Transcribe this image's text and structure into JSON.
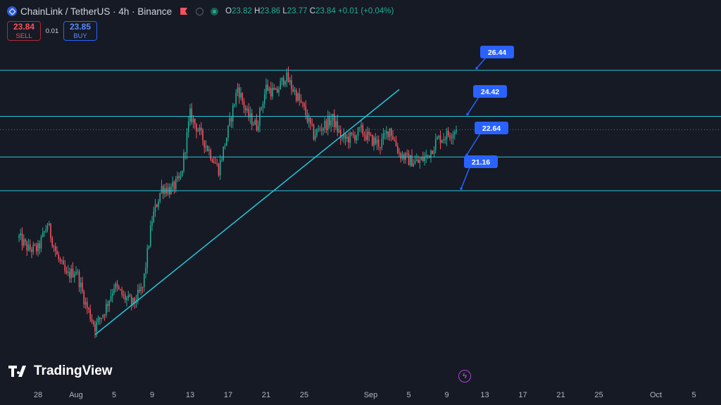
{
  "header": {
    "symbol_title": "ChainLink / TetherUS · 4h · Binance",
    "ohlc": {
      "o_label": "O",
      "o": "23.82",
      "h_label": "H",
      "h": "23.86",
      "l_label": "L",
      "l": "23.77",
      "c_label": "C",
      "c": "23.84",
      "change": "+0.01 (+0.04%)"
    }
  },
  "trade": {
    "sell_price": "23.84",
    "sell_label": "SELL",
    "spread": "0.01",
    "buy_price": "23.85",
    "buy_label": "BUY"
  },
  "branding": {
    "logo_text": "TradingView"
  },
  "colors": {
    "background": "#161a25",
    "up": "#22ab94",
    "down": "#f7525f",
    "lines": "#26c6da",
    "callout": "#2962ff"
  },
  "chart_data": {
    "type": "candlestick",
    "interval": "4h",
    "x_tick_labels": [
      "28",
      "Aug",
      "5",
      "9",
      "13",
      "17",
      "21",
      "25",
      "Sep",
      "5",
      "9",
      "13",
      "17",
      "21",
      "25",
      "Oct",
      "5"
    ],
    "x_tick_dates": [
      "2024-07-28",
      "2024-08-01",
      "2024-08-05",
      "2024-08-09",
      "2024-08-13",
      "2024-08-17",
      "2024-08-21",
      "2024-08-25",
      "2024-09-01",
      "2024-09-05",
      "2024-09-09",
      "2024-09-13",
      "2024-09-17",
      "2024-09-21",
      "2024-09-25",
      "2024-10-01",
      "2024-10-05"
    ],
    "y_range": [
      15.0,
      27.5
    ],
    "grid": false,
    "last_price": 23.84,
    "horizontal_levels": [
      {
        "label": "26.44",
        "value": 26.44
      },
      {
        "label": "24.42",
        "value": 24.42
      },
      {
        "label": "22.64",
        "value": 22.64
      },
      {
        "label": "21.16",
        "value": 21.16
      }
    ],
    "trendline": {
      "from": {
        "date": "2024-08-03",
        "value": 14.85
      },
      "to": {
        "date": "2024-09-04",
        "value": 25.6
      }
    },
    "close_path": [
      [
        "2024-07-26",
        19.1
      ],
      [
        "2024-07-27",
        18.6
      ],
      [
        "2024-07-28",
        18.6
      ],
      [
        "2024-07-29",
        19.7
      ],
      [
        "2024-07-30",
        18.3
      ],
      [
        "2024-07-31",
        17.4
      ],
      [
        "2024-08-01",
        17.7
      ],
      [
        "2024-08-02",
        16.2
      ],
      [
        "2024-08-03",
        15.2
      ],
      [
        "2024-08-04",
        15.9
      ],
      [
        "2024-08-05",
        17.0
      ],
      [
        "2024-08-06",
        16.5
      ],
      [
        "2024-08-07",
        16.2
      ],
      [
        "2024-08-08",
        16.9
      ],
      [
        "2024-08-09",
        19.9
      ],
      [
        "2024-08-10",
        21.3
      ],
      [
        "2024-08-11",
        21.2
      ],
      [
        "2024-08-12",
        21.7
      ],
      [
        "2024-08-13",
        24.5
      ],
      [
        "2024-08-14",
        23.7
      ],
      [
        "2024-08-15",
        22.9
      ],
      [
        "2024-08-16",
        22.1
      ],
      [
        "2024-08-17",
        23.8
      ],
      [
        "2024-08-18",
        25.7
      ],
      [
        "2024-08-19",
        24.5
      ],
      [
        "2024-08-20",
        24.0
      ],
      [
        "2024-08-21",
        25.7
      ],
      [
        "2024-08-22",
        25.4
      ],
      [
        "2024-08-23",
        26.2
      ],
      [
        "2024-08-24",
        25.5
      ],
      [
        "2024-08-25",
        24.7
      ],
      [
        "2024-08-26",
        23.6
      ],
      [
        "2024-08-27",
        24.0
      ],
      [
        "2024-08-28",
        24.3
      ],
      [
        "2024-08-29",
        23.4
      ],
      [
        "2024-08-30",
        23.5
      ],
      [
        "2024-08-31",
        23.8
      ],
      [
        "2024-09-01",
        23.4
      ],
      [
        "2024-09-02",
        23.2
      ],
      [
        "2024-09-03",
        23.9
      ],
      [
        "2024-09-04",
        22.8
      ],
      [
        "2024-09-05",
        22.5
      ],
      [
        "2024-09-06",
        22.4
      ],
      [
        "2024-09-07",
        22.7
      ],
      [
        "2024-09-08",
        23.4
      ],
      [
        "2024-09-09",
        23.6
      ],
      [
        "2024-09-10",
        23.84
      ]
    ]
  }
}
